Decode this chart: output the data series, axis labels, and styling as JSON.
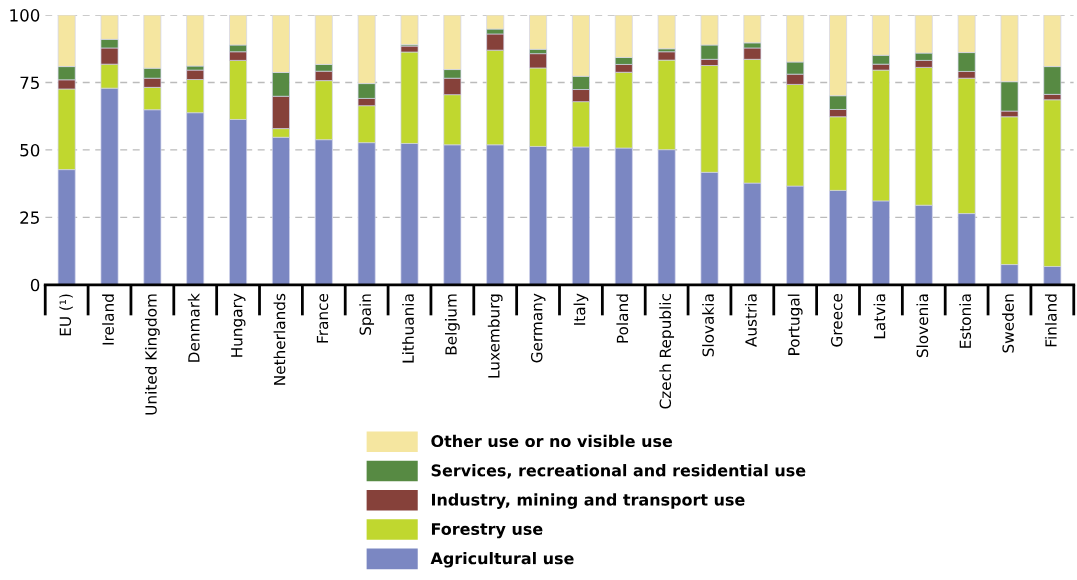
{
  "chart_data": {
    "type": "bar",
    "stacked": true,
    "categories": [
      "EU (¹)",
      "Ireland",
      "United Kingdom",
      "Denmark",
      "Hungary",
      "Netherlands",
      "France",
      "Spain",
      "Lithuania",
      "Belgium",
      "Luxemburg",
      "Germany",
      "Italy",
      "Poland",
      "Czech Republic",
      "Slovakia",
      "Austria",
      "Portugal",
      "Greece",
      "Latvia",
      "Slovenia",
      "Estonia",
      "Sweden",
      "Finland"
    ],
    "series": [
      {
        "name": "Agricultural use",
        "color": "#7b87c2",
        "values": [
          42.7,
          72.9,
          64.9,
          63.8,
          61.3,
          54.7,
          53.8,
          52.7,
          52.4,
          51.9,
          51.9,
          51.3,
          51.1,
          50.7,
          50.1,
          41.7,
          37.7,
          36.6,
          35.0,
          31.1,
          29.5,
          26.4,
          7.5,
          6.8
        ]
      },
      {
        "name": "Forestry use",
        "color": "#c0d72f",
        "values": [
          29.9,
          8.9,
          8.3,
          12.3,
          21.9,
          3.2,
          21.9,
          13.7,
          33.9,
          18.6,
          35.1,
          29.1,
          16.8,
          28.1,
          33.2,
          39.6,
          45.9,
          37.7,
          27.3,
          48.5,
          51.1,
          50.2,
          54.8,
          61.8
        ]
      },
      {
        "name": "Industry, mining and transport use",
        "color": "#86413a",
        "values": [
          3.4,
          6.0,
          3.4,
          3.5,
          3.2,
          12.0,
          3.5,
          2.7,
          2.2,
          6.1,
          6.0,
          5.3,
          4.5,
          2.9,
          3.1,
          2.3,
          4.2,
          3.8,
          2.7,
          2.2,
          2.6,
          2.5,
          2.1,
          2.0
        ]
      },
      {
        "name": "Services, recreational and residential use",
        "color": "#578a43",
        "values": [
          4.9,
          3.2,
          3.7,
          1.5,
          2.5,
          8.8,
          2.5,
          5.5,
          0.5,
          3.2,
          1.8,
          1.6,
          4.9,
          2.6,
          1.1,
          5.3,
          1.9,
          4.5,
          5.1,
          3.3,
          2.7,
          7.0,
          10.9,
          10.3
        ]
      },
      {
        "name": "Other use or no visible use",
        "color": "#f5e6a0",
        "values": [
          19.1,
          9.0,
          19.7,
          18.9,
          11.1,
          21.3,
          18.3,
          25.4,
          11.0,
          20.2,
          5.2,
          12.7,
          22.7,
          15.7,
          12.5,
          11.1,
          10.3,
          17.4,
          29.9,
          14.9,
          14.1,
          13.9,
          24.7,
          19.1
        ]
      }
    ],
    "ylim": [
      0,
      100
    ],
    "yticks": [
      0,
      25,
      50,
      75,
      100
    ],
    "grid": "y",
    "legend": "bottom"
  }
}
